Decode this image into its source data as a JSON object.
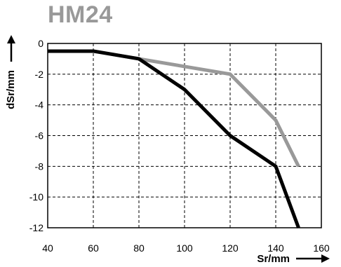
{
  "chart_data": {
    "type": "line",
    "title": "HM24",
    "xlabel": "Sr/mm",
    "ylabel": "dSr/mm",
    "xlim": [
      40,
      160
    ],
    "ylim": [
      -12,
      0
    ],
    "x_ticks": [
      "40",
      "60",
      "80",
      "100",
      "120",
      "140",
      "160"
    ],
    "y_ticks": [
      "0",
      "-2",
      "-4",
      "-6",
      "-8",
      "-10",
      "-12"
    ],
    "grid": true,
    "series": [
      {
        "color": "#000000",
        "x": [
          40,
          60,
          80,
          100,
          120,
          140,
          150
        ],
        "y": [
          -0.5,
          -0.5,
          -1,
          -3,
          -6,
          -8,
          -12
        ]
      },
      {
        "color": "#999999",
        "x": [
          40,
          60,
          80,
          120,
          140,
          150
        ],
        "y": [
          -0.5,
          -0.5,
          -1,
          -2,
          -5,
          -8
        ]
      }
    ],
    "colors": {
      "title": "#999999",
      "axis": "#000000",
      "grid": "#000000"
    }
  }
}
